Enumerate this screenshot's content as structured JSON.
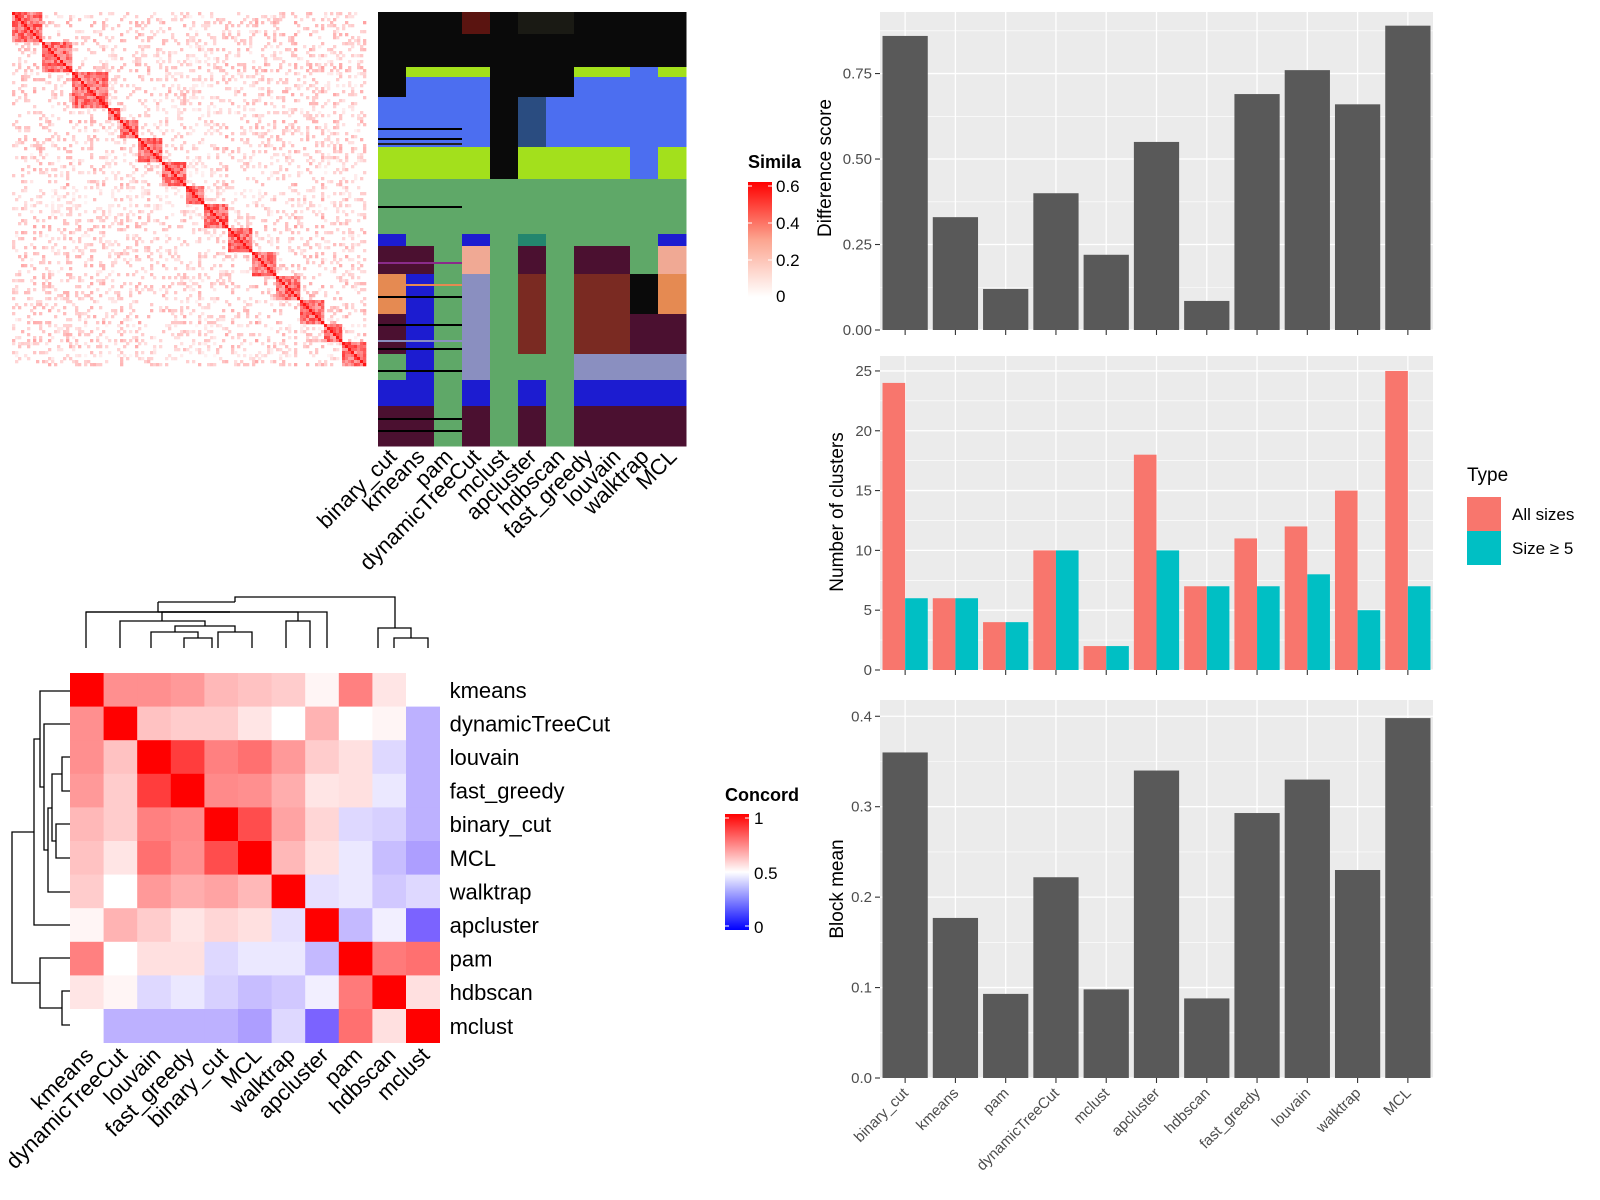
{
  "colors": {
    "panel_bg": "#EBEBEB",
    "grid": "#FFFFFF",
    "bar_grey": "#595959",
    "all_sizes": "#F8766D",
    "size_ge5": "#00BFC4"
  },
  "similarity_heatmap": {
    "legend_title": "Simila",
    "legend_ticks": [
      "0.6",
      "0.4",
      "0.2",
      "0"
    ],
    "legend_max": 0.6,
    "columns": [
      "binary_cut",
      "kmeans",
      "pam",
      "dynamicTreeCut",
      "mclust",
      "apcluster",
      "hdbscan",
      "fast_greedy",
      "louvain",
      "walktrap",
      "MCL"
    ]
  },
  "concordance_heatmap": {
    "legend_title": "Concord",
    "legend_ticks": [
      "1",
      "0.5",
      "0"
    ],
    "labels": [
      "kmeans",
      "dynamicTreeCut",
      "louvain",
      "fast_greedy",
      "binary_cut",
      "MCL",
      "walktrap",
      "apcluster",
      "pam",
      "hdbscan",
      "mclust"
    ],
    "matrix": [
      [
        1.0,
        0.72,
        0.72,
        0.7,
        0.64,
        0.62,
        0.6,
        0.52,
        0.75,
        0.55,
        0.5
      ],
      [
        0.72,
        1.0,
        0.62,
        0.6,
        0.6,
        0.55,
        0.5,
        0.65,
        0.5,
        0.52,
        0.3
      ],
      [
        0.72,
        0.62,
        1.0,
        0.88,
        0.75,
        0.78,
        0.7,
        0.6,
        0.56,
        0.4,
        0.3
      ],
      [
        0.7,
        0.6,
        0.88,
        1.0,
        0.73,
        0.72,
        0.66,
        0.55,
        0.56,
        0.44,
        0.3
      ],
      [
        0.64,
        0.6,
        0.75,
        0.73,
        1.0,
        0.85,
        0.68,
        0.58,
        0.4,
        0.38,
        0.3
      ],
      [
        0.62,
        0.55,
        0.78,
        0.72,
        0.85,
        1.0,
        0.64,
        0.56,
        0.44,
        0.33,
        0.25
      ],
      [
        0.6,
        0.5,
        0.7,
        0.66,
        0.68,
        0.64,
        1.0,
        0.42,
        0.44,
        0.36,
        0.4
      ],
      [
        0.52,
        0.65,
        0.6,
        0.55,
        0.58,
        0.56,
        0.42,
        1.0,
        0.32,
        0.46,
        0.1
      ],
      [
        0.75,
        0.5,
        0.56,
        0.56,
        0.4,
        0.44,
        0.44,
        0.32,
        1.0,
        0.76,
        0.78
      ],
      [
        0.55,
        0.52,
        0.4,
        0.44,
        0.38,
        0.33,
        0.36,
        0.46,
        0.76,
        1.0,
        0.56
      ],
      [
        0.5,
        0.3,
        0.3,
        0.3,
        0.3,
        0.25,
        0.4,
        0.1,
        0.78,
        0.56,
        1.0
      ]
    ]
  },
  "chart_data": [
    {
      "type": "bar",
      "ylabel": "Difference score",
      "categories": [
        "binary_cut",
        "kmeans",
        "pam",
        "dynamicTreeCut",
        "mclust",
        "apcluster",
        "hdbscan",
        "fast_greedy",
        "louvain",
        "walktrap",
        "MCL"
      ],
      "values": [
        0.86,
        0.33,
        0.12,
        0.4,
        0.22,
        0.55,
        0.085,
        0.69,
        0.76,
        0.66,
        0.89
      ],
      "ylim": [
        0,
        0.93
      ],
      "yticks": [
        "0.00",
        "0.25",
        "0.50",
        "0.75"
      ],
      "ytick_values": [
        0,
        0.25,
        0.5,
        0.75
      ]
    },
    {
      "type": "bar",
      "ylabel": "Number of clusters",
      "categories": [
        "binary_cut",
        "kmeans",
        "pam",
        "dynamicTreeCut",
        "mclust",
        "apcluster",
        "hdbscan",
        "fast_greedy",
        "louvain",
        "walktrap",
        "MCL"
      ],
      "series": [
        {
          "name": "All sizes",
          "values": [
            24,
            6,
            4,
            10,
            2,
            18,
            7,
            11,
            12,
            15,
            25
          ]
        },
        {
          "name": "Size ≥ 5",
          "values": [
            6,
            6,
            4,
            10,
            2,
            10,
            7,
            7,
            8,
            5,
            7
          ]
        }
      ],
      "legend_title": "Type",
      "ylim": [
        0,
        26.25
      ],
      "yticks": [
        "0",
        "5",
        "10",
        "15",
        "20",
        "25"
      ],
      "ytick_values": [
        0,
        5,
        10,
        15,
        20,
        25
      ]
    },
    {
      "type": "bar",
      "ylabel": "Block mean",
      "categories": [
        "binary_cut",
        "kmeans",
        "pam",
        "dynamicTreeCut",
        "mclust",
        "apcluster",
        "hdbscan",
        "fast_greedy",
        "louvain",
        "walktrap",
        "MCL"
      ],
      "values": [
        0.36,
        0.177,
        0.093,
        0.222,
        0.098,
        0.34,
        0.088,
        0.293,
        0.33,
        0.23,
        0.398
      ],
      "ylim": [
        0,
        0.418
      ],
      "yticks": [
        "0.0",
        "0.1",
        "0.2",
        "0.3",
        "0.4"
      ],
      "ytick_values": [
        0,
        0.1,
        0.2,
        0.3,
        0.4
      ]
    }
  ]
}
